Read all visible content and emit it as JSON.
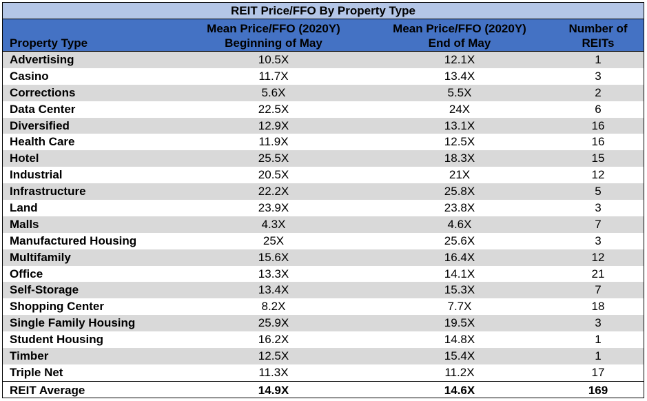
{
  "chart_data": {
    "type": "table",
    "title": "REIT Price/FFO By Property Type",
    "columns": [
      {
        "line1": "",
        "line2": "Property Type"
      },
      {
        "line1": "Mean Price/FFO (2020Y)",
        "line2": "Beginning of May"
      },
      {
        "line1": "Mean Price/FFO (2020Y)",
        "line2": "End of May"
      },
      {
        "line1": "Number of",
        "line2": "REITs"
      }
    ],
    "rows": [
      {
        "type": "Advertising",
        "begin": "10.5X",
        "end": "12.1X",
        "count": "1"
      },
      {
        "type": "Casino",
        "begin": "11.7X",
        "end": "13.4X",
        "count": "3"
      },
      {
        "type": "Corrections",
        "begin": "5.6X",
        "end": "5.5X",
        "count": "2"
      },
      {
        "type": "Data Center",
        "begin": "22.5X",
        "end": "24X",
        "count": "6"
      },
      {
        "type": "Diversified",
        "begin": "12.9X",
        "end": "13.1X",
        "count": "16"
      },
      {
        "type": "Health Care",
        "begin": "11.9X",
        "end": "12.5X",
        "count": "16"
      },
      {
        "type": "Hotel",
        "begin": "25.5X",
        "end": "18.3X",
        "count": "15"
      },
      {
        "type": "Industrial",
        "begin": "20.5X",
        "end": "21X",
        "count": "12"
      },
      {
        "type": "Infrastructure",
        "begin": "22.2X",
        "end": "25.8X",
        "count": "5"
      },
      {
        "type": "Land",
        "begin": "23.9X",
        "end": "23.8X",
        "count": "3"
      },
      {
        "type": "Malls",
        "begin": "4.3X",
        "end": "4.6X",
        "count": "7"
      },
      {
        "type": "Manufactured Housing",
        "begin": "25X",
        "end": "25.6X",
        "count": "3"
      },
      {
        "type": "Multifamily",
        "begin": "15.6X",
        "end": "16.4X",
        "count": "12"
      },
      {
        "type": "Office",
        "begin": "13.3X",
        "end": "14.1X",
        "count": "21"
      },
      {
        "type": "Self-Storage",
        "begin": "13.4X",
        "end": "15.3X",
        "count": "7"
      },
      {
        "type": "Shopping Center",
        "begin": "8.2X",
        "end": "7.7X",
        "count": "18"
      },
      {
        "type": "Single Family Housing",
        "begin": "25.9X",
        "end": "19.5X",
        "count": "3"
      },
      {
        "type": "Student Housing",
        "begin": "16.2X",
        "end": "14.8X",
        "count": "1"
      },
      {
        "type": "Timber",
        "begin": "12.5X",
        "end": "15.4X",
        "count": "1"
      },
      {
        "type": "Triple Net",
        "begin": "11.3X",
        "end": "11.2X",
        "count": "17"
      }
    ],
    "total": {
      "type": "REIT Average",
      "begin": "14.9X",
      "end": "14.6X",
      "count": "169"
    },
    "colors": {
      "title_bg": "#b4c6e7",
      "header_bg": "#4472c4",
      "alt_row_bg": "#d9d9d9"
    }
  }
}
